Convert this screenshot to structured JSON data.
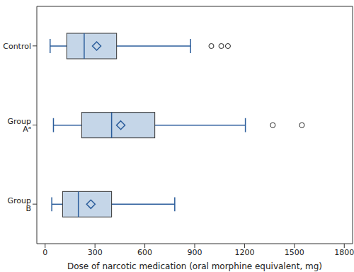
{
  "chart_data": {
    "type": "box",
    "orientation": "horizontal",
    "categories": [
      "Control",
      "Group Aᵃ",
      "Group B"
    ],
    "x_label": "Dose of narcotic medication (oral morphine equivalent, mg)",
    "xlim": [
      -50,
      1850
    ],
    "xticks": [
      0,
      300,
      600,
      900,
      1200,
      1500,
      1800
    ],
    "color": "#c5d6e8",
    "line_color": "#2b5d9b",
    "marker": "diamond",
    "boxes": [
      {
        "whisker_low": 30,
        "q1": 130,
        "median": 235,
        "q3": 430,
        "whisker_high": 875,
        "mean": 310,
        "outliers": [
          1000,
          1060,
          1100
        ]
      },
      {
        "whisker_low": 50,
        "q1": 220,
        "median": 400,
        "q3": 660,
        "whisker_high": 1205,
        "mean": 455,
        "outliers": [
          1370,
          1545
        ]
      },
      {
        "whisker_low": 40,
        "q1": 105,
        "median": 200,
        "q3": 400,
        "whisker_high": 780,
        "mean": 275,
        "outliers": []
      }
    ]
  }
}
